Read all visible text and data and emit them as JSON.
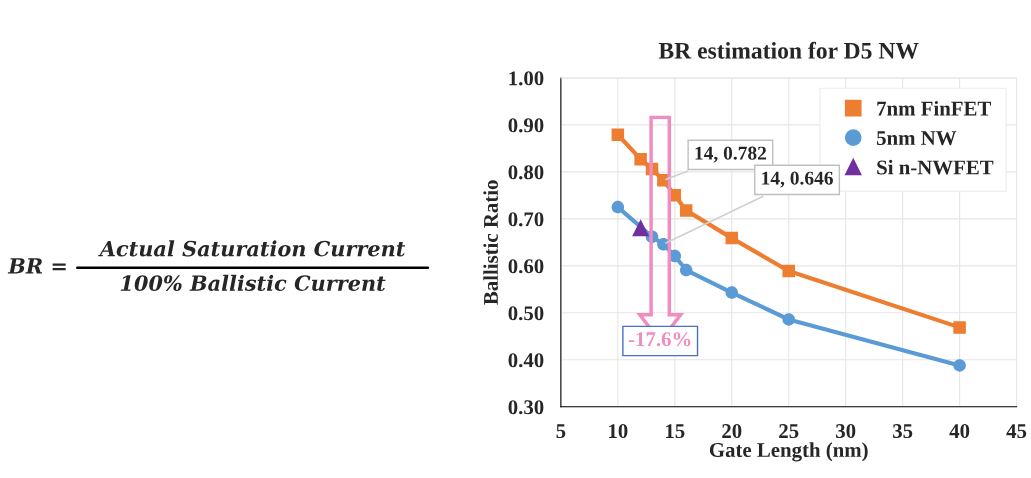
{
  "chart_data": {
    "type": "line",
    "title": "BR estimation for D5 NW",
    "xlabel": "Gate Length (nm)",
    "ylabel": "Ballistic Ratio",
    "xlim": [
      5,
      45
    ],
    "xticks": [
      5,
      10,
      15,
      20,
      25,
      30,
      35,
      40,
      45
    ],
    "ylim": [
      0.3,
      1.0
    ],
    "yticks": [
      {
        "value": 0.3,
        "label": "0.30"
      },
      {
        "value": 0.4,
        "label": "0.40"
      },
      {
        "value": 0.5,
        "label": "0.50"
      },
      {
        "value": 0.6,
        "label": "0.60"
      },
      {
        "value": 0.7,
        "label": "0.70"
      },
      {
        "value": 0.8,
        "label": "0.80"
      },
      {
        "value": 0.9,
        "label": "0.90"
      },
      {
        "value": 1.0,
        "label": "1.00"
      }
    ],
    "grid": true,
    "legend": "top right",
    "line_style": "solid",
    "series": [
      {
        "name": "7nm FinFET",
        "color": "#ed7d31",
        "marker": "square",
        "x": [
          10,
          12,
          13,
          14,
          15,
          16,
          20,
          25,
          40
        ],
        "values": [
          0.879,
          0.827,
          0.806,
          0.782,
          0.75,
          0.718,
          0.659,
          0.589,
          0.469
        ]
      },
      {
        "name": "5nm NW",
        "color": "#5b9bd5",
        "marker": "circle",
        "x": [
          10,
          13,
          14,
          15,
          16,
          20,
          25,
          40
        ],
        "values": [
          0.725,
          0.662,
          0.646,
          0.621,
          0.591,
          0.543,
          0.486,
          0.388
        ]
      },
      {
        "name": "Si n-NWFET",
        "type": "scatter",
        "color": "#7030a0",
        "marker": "triangle",
        "x": [
          12
        ],
        "values": [
          0.681
        ]
      }
    ],
    "annotations": [
      {
        "text": "14, 0.782",
        "x": 14,
        "y": 0.782
      },
      {
        "text": "14, 0.646",
        "x": 14,
        "y": 0.646
      },
      "-17.6%",
      "BR =",
      "Actual Saturation Current",
      "100% Ballistic Current"
    ]
  }
}
